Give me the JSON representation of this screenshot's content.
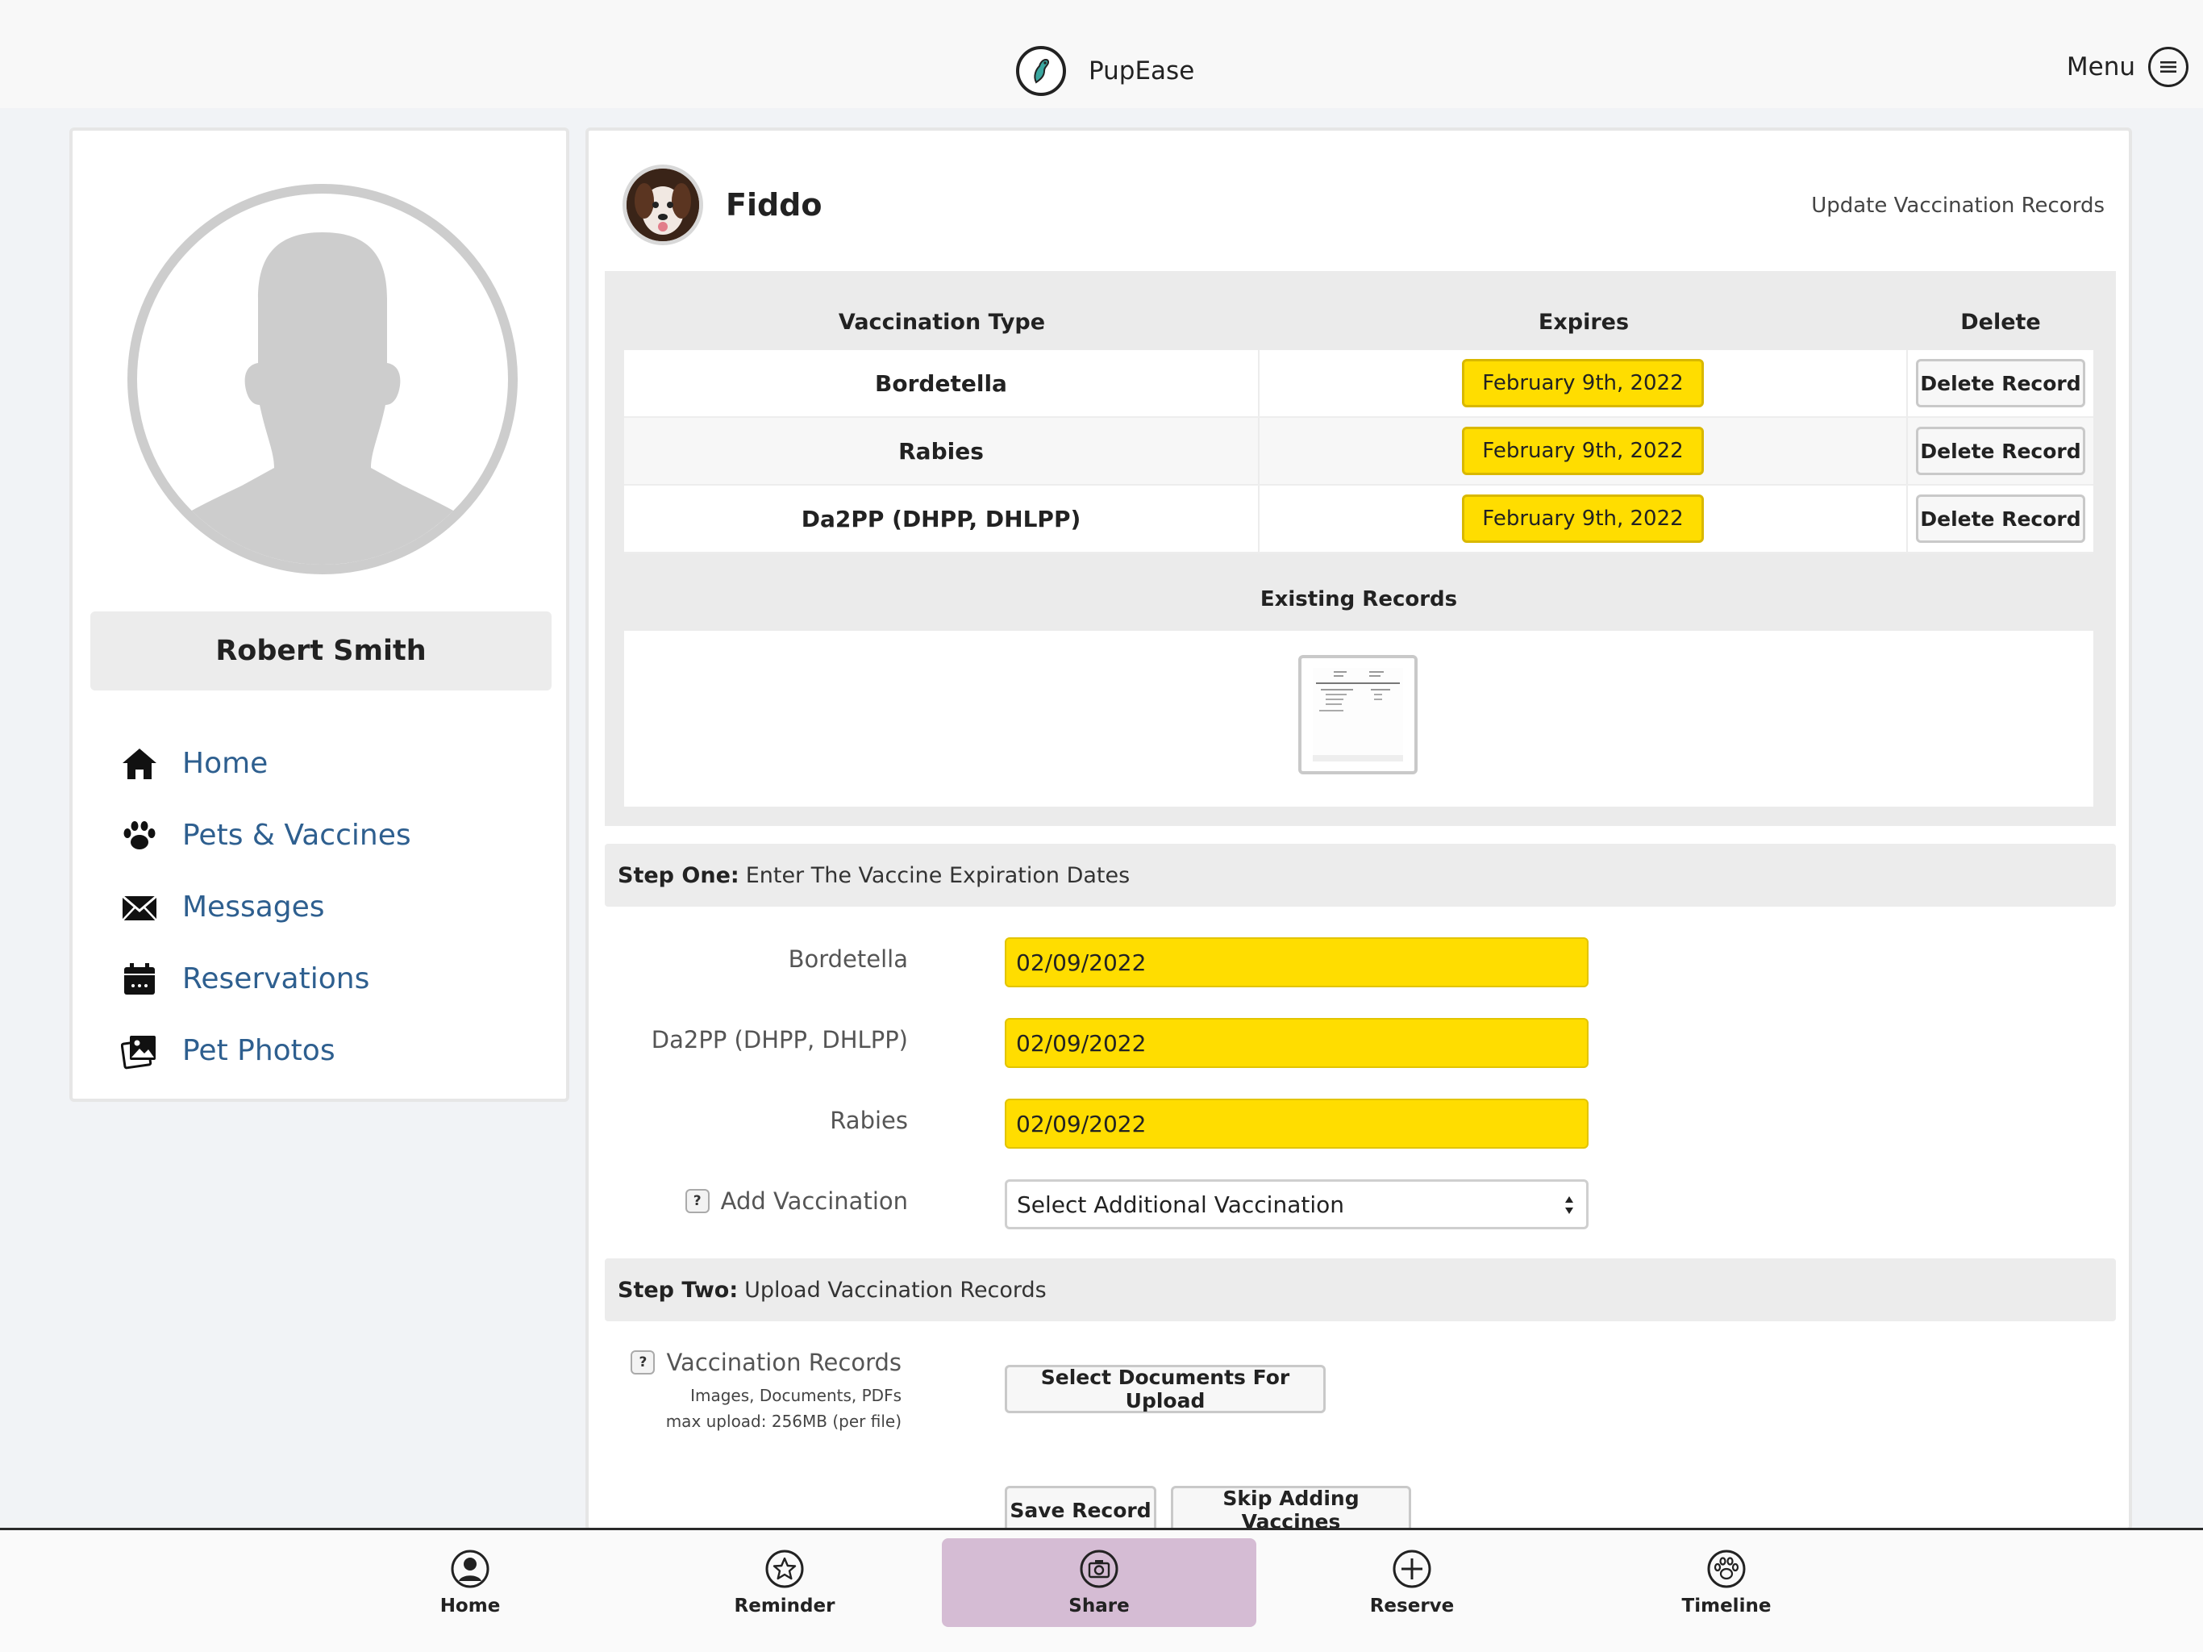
{
  "app": {
    "name": "PupEase",
    "menu_label": "Menu"
  },
  "user": {
    "name": "Robert Smith"
  },
  "sidebar": {
    "items": [
      {
        "label": "Home",
        "icon": "home-icon"
      },
      {
        "label": "Pets & Vaccines",
        "icon": "paw-icon"
      },
      {
        "label": "Messages",
        "icon": "envelope-icon"
      },
      {
        "label": "Reservations",
        "icon": "calendar-icon"
      },
      {
        "label": "Pet Photos",
        "icon": "photos-icon"
      }
    ]
  },
  "pet": {
    "name": "Fiddo",
    "update_link": "Update Vaccination Records"
  },
  "records": {
    "headers": {
      "type": "Vaccination Type",
      "expires": "Expires",
      "delete": "Delete"
    },
    "rows": [
      {
        "type": "Bordetella",
        "expires": "February 9th, 2022",
        "action": "Delete Record"
      },
      {
        "type": "Rabies",
        "expires": "February 9th, 2022",
        "action": "Delete Record"
      },
      {
        "type": "Da2PP (DHPP, DHLPP)",
        "expires": "February 9th, 2022",
        "action": "Delete Record"
      }
    ],
    "existing_label": "Existing Records"
  },
  "step_one": {
    "title_bold": "Step One:",
    "title_rest": "Enter The Vaccine Expiration Dates",
    "fields": [
      {
        "label": "Bordetella",
        "value": "02/09/2022"
      },
      {
        "label": "Da2PP (DHPP, DHLPP)",
        "value": "02/09/2022"
      },
      {
        "label": "Rabies",
        "value": "02/09/2022"
      }
    ],
    "add_vaccination": {
      "help": "?",
      "label": "Add Vaccination",
      "selected": "Select Additional Vaccination"
    }
  },
  "step_two": {
    "title_bold": "Step Two:",
    "title_rest": "Upload Vaccination Records",
    "upload": {
      "help": "?",
      "label": "Vaccination Records",
      "sub1": "Images, Documents, PDFs",
      "sub2": "max upload: 256MB (per file)",
      "button": "Select Documents For Upload"
    },
    "save_button": "Save Record",
    "skip_button": "Skip Adding Vaccines"
  },
  "tabs": [
    {
      "label": "Home",
      "icon": "person-icon",
      "active": false
    },
    {
      "label": "Reminder",
      "icon": "star-icon",
      "active": false
    },
    {
      "label": "Share",
      "icon": "camera-icon",
      "active": true
    },
    {
      "label": "Reserve",
      "icon": "plus-circle-icon",
      "active": false
    },
    {
      "label": "Timeline",
      "icon": "paw-circle-icon",
      "active": false
    }
  ],
  "colors": {
    "accent_yellow": "#ffdd00",
    "nav_link": "#2e5f8f",
    "active_tab": "#d5bcd4"
  }
}
